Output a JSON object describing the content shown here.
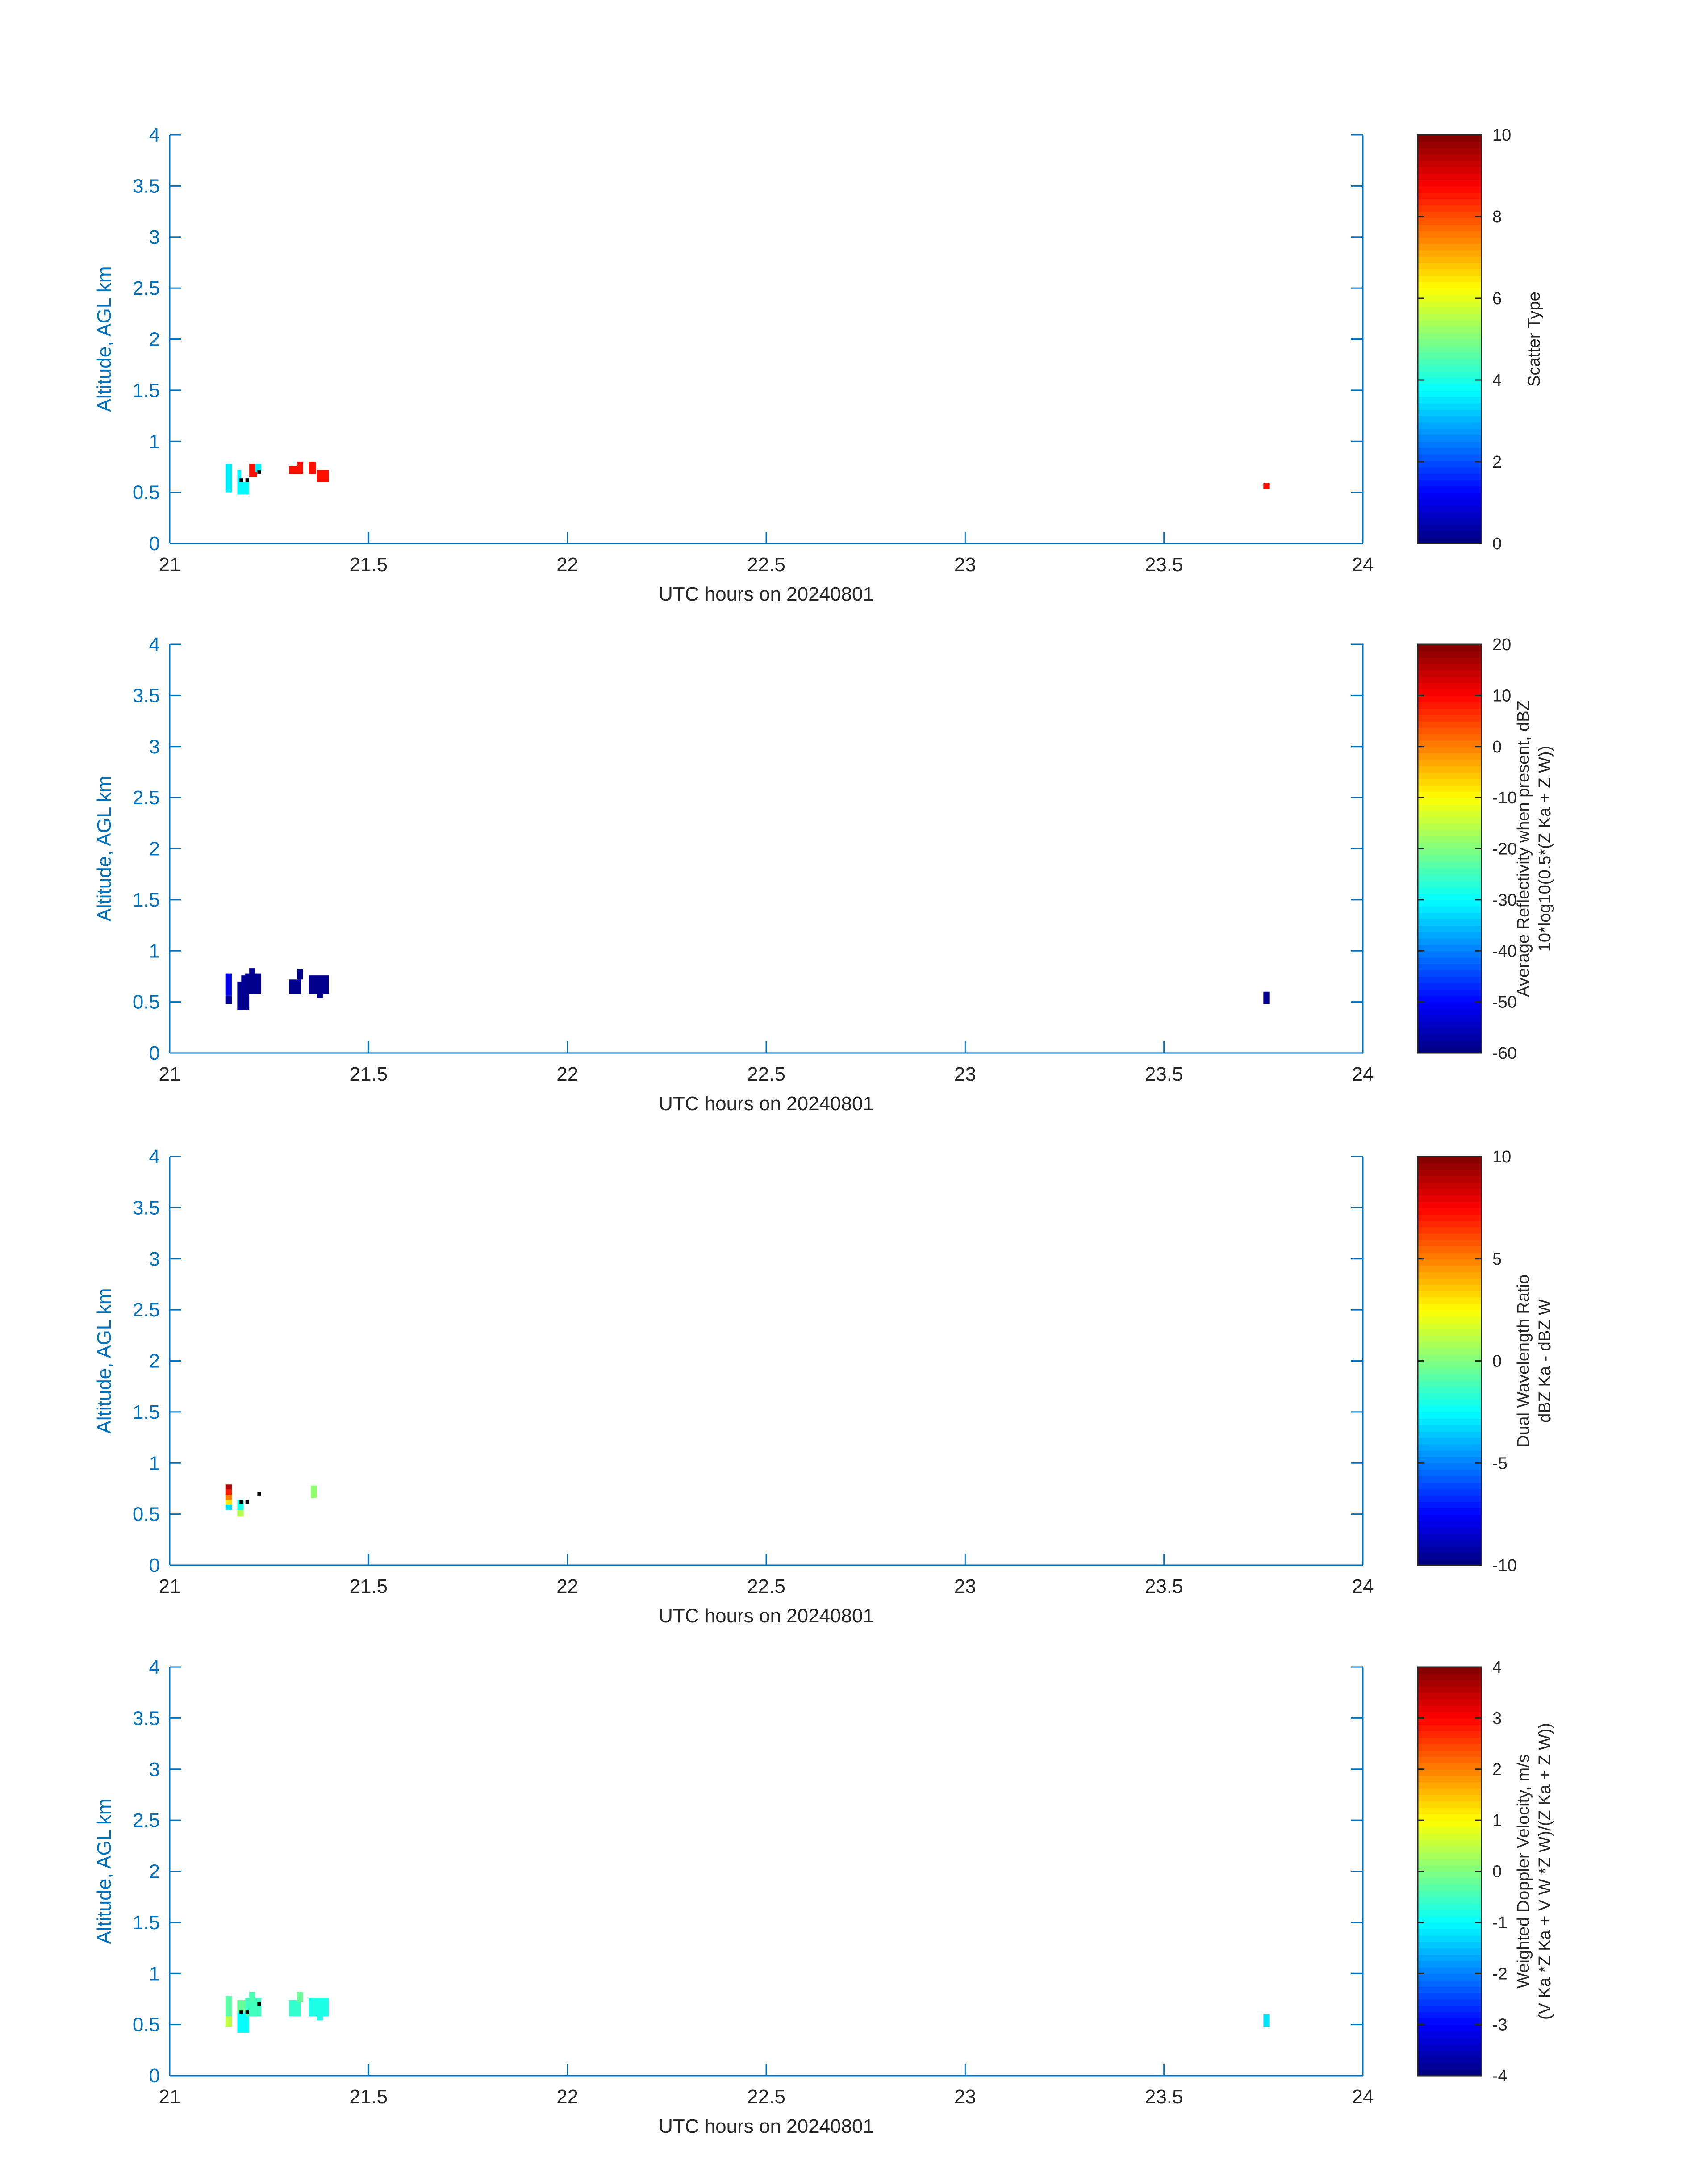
{
  "figure": {
    "background": "#ffffff",
    "axis_color": "#0072BD",
    "text_color": "#262626"
  },
  "colormap": "jet",
  "chart_data": [
    {
      "type": "heatmap",
      "name": "scatter-type",
      "xlabel": "UTC hours on 20240801",
      "ylabel": "Altitude, AGL km",
      "xlim": [
        21,
        24
      ],
      "ylim": [
        0,
        4
      ],
      "xticks": [
        "21",
        "21.5",
        "22",
        "22.5",
        "23",
        "23.5",
        "24"
      ],
      "yticks": [
        "0",
        "0.5",
        "1",
        "1.5",
        "2",
        "2.5",
        "3",
        "3.5",
        "4"
      ],
      "colorbar": {
        "label_lines": [
          "Scatter Type"
        ],
        "clim": [
          0,
          10
        ],
        "ticks": [
          "0",
          "2",
          "4",
          "6",
          "8",
          "10"
        ]
      },
      "cells": [
        {
          "x": 21.14,
          "y": 0.5,
          "w": 0.016,
          "h": 0.28,
          "v": 3.6
        },
        {
          "x": 21.17,
          "y": 0.48,
          "w": 0.03,
          "h": 0.12,
          "v": 3.7
        },
        {
          "x": 21.17,
          "y": 0.6,
          "w": 0.01,
          "h": 0.12,
          "v": 3.7
        },
        {
          "x": 21.2,
          "y": 0.65,
          "w": 0.02,
          "h": 0.13,
          "v": 8.6
        },
        {
          "x": 21.215,
          "y": 0.7,
          "w": 0.015,
          "h": 0.08,
          "v": 3.6
        },
        {
          "x": 21.3,
          "y": 0.68,
          "w": 0.02,
          "h": 0.08,
          "v": 8.6
        },
        {
          "x": 21.32,
          "y": 0.68,
          "w": 0.015,
          "h": 0.12,
          "v": 8.6
        },
        {
          "x": 21.35,
          "y": 0.68,
          "w": 0.018,
          "h": 0.12,
          "v": 8.6
        },
        {
          "x": 21.37,
          "y": 0.6,
          "w": 0.03,
          "h": 0.12,
          "v": 8.6
        },
        {
          "x": 23.75,
          "y": 0.53,
          "w": 0.015,
          "h": 0.06,
          "v": 8.6
        }
      ],
      "markers": [
        {
          "x": 21.18,
          "y": 0.62
        },
        {
          "x": 21.195,
          "y": 0.62
        },
        {
          "x": 21.225,
          "y": 0.7
        }
      ]
    },
    {
      "type": "heatmap",
      "name": "average-reflectivity",
      "xlabel": "UTC hours on 20240801",
      "ylabel": "Altitude, AGL km",
      "xlim": [
        21,
        24
      ],
      "ylim": [
        0,
        4
      ],
      "xticks": [
        "21",
        "21.5",
        "22",
        "22.5",
        "23",
        "23.5",
        "24"
      ],
      "yticks": [
        "0",
        "0.5",
        "1",
        "1.5",
        "2",
        "2.5",
        "3",
        "3.5",
        "4"
      ],
      "colorbar": {
        "label_lines": [
          "Average Reflectivity when present, dBZ",
          "10*log10(0.5*(Z Ka + Z W))"
        ],
        "clim": [
          -60,
          20
        ],
        "ticks": [
          "-60",
          "-50",
          "-40",
          "-30",
          "-20",
          "-10",
          "0",
          "10",
          "20"
        ]
      },
      "cells": [
        {
          "x": 21.14,
          "y": 0.48,
          "w": 0.016,
          "h": 0.08,
          "v": -58
        },
        {
          "x": 21.14,
          "y": 0.56,
          "w": 0.016,
          "h": 0.22,
          "v": -52
        },
        {
          "x": 21.17,
          "y": 0.42,
          "w": 0.03,
          "h": 0.28,
          "v": -59
        },
        {
          "x": 21.18,
          "y": 0.58,
          "w": 0.03,
          "h": 0.18,
          "v": -58
        },
        {
          "x": 21.19,
          "y": 0.58,
          "w": 0.04,
          "h": 0.2,
          "v": -59
        },
        {
          "x": 21.2,
          "y": 0.75,
          "w": 0.015,
          "h": 0.08,
          "v": -59
        },
        {
          "x": 21.3,
          "y": 0.58,
          "w": 0.03,
          "h": 0.14,
          "v": -59
        },
        {
          "x": 21.32,
          "y": 0.72,
          "w": 0.015,
          "h": 0.1,
          "v": -59
        },
        {
          "x": 21.35,
          "y": 0.58,
          "w": 0.05,
          "h": 0.18,
          "v": -59
        },
        {
          "x": 21.37,
          "y": 0.54,
          "w": 0.015,
          "h": 0.05,
          "v": -59
        },
        {
          "x": 23.75,
          "y": 0.48,
          "w": 0.015,
          "h": 0.12,
          "v": -59
        }
      ],
      "markers": []
    },
    {
      "type": "heatmap",
      "name": "dual-wavelength-ratio",
      "xlabel": "UTC hours on 20240801",
      "ylabel": "Altitude, AGL km",
      "xlim": [
        21,
        24
      ],
      "ylim": [
        0,
        4
      ],
      "xticks": [
        "21",
        "21.5",
        "22",
        "22.5",
        "23",
        "23.5",
        "24"
      ],
      "yticks": [
        "0",
        "0.5",
        "1",
        "1.5",
        "2",
        "2.5",
        "3",
        "3.5",
        "4"
      ],
      "colorbar": {
        "label_lines": [
          "Dual Wavelength Ratio",
          "dBZ Ka - dBZ W"
        ],
        "clim": [
          -10,
          10
        ],
        "ticks": [
          "-10",
          "-5",
          "0",
          "5",
          "10"
        ]
      },
      "cells": [
        {
          "x": 21.14,
          "y": 0.54,
          "w": 0.016,
          "h": 0.05,
          "v": -3
        },
        {
          "x": 21.14,
          "y": 0.59,
          "w": 0.016,
          "h": 0.05,
          "v": 3
        },
        {
          "x": 21.14,
          "y": 0.64,
          "w": 0.016,
          "h": 0.05,
          "v": 5
        },
        {
          "x": 21.14,
          "y": 0.69,
          "w": 0.016,
          "h": 0.05,
          "v": 7
        },
        {
          "x": 21.14,
          "y": 0.74,
          "w": 0.016,
          "h": 0.05,
          "v": 9
        },
        {
          "x": 21.17,
          "y": 0.48,
          "w": 0.016,
          "h": 0.06,
          "v": 1
        },
        {
          "x": 21.17,
          "y": 0.54,
          "w": 0.016,
          "h": 0.1,
          "v": -2
        },
        {
          "x": 21.355,
          "y": 0.66,
          "w": 0.015,
          "h": 0.12,
          "v": 0.3
        }
      ],
      "markers": [
        {
          "x": 21.18,
          "y": 0.62
        },
        {
          "x": 21.195,
          "y": 0.62
        },
        {
          "x": 21.225,
          "y": 0.7
        }
      ]
    },
    {
      "type": "heatmap",
      "name": "weighted-doppler-velocity",
      "xlabel": "UTC hours on 20240801",
      "ylabel": "Altitude, AGL km",
      "xlim": [
        21,
        24
      ],
      "ylim": [
        0,
        4
      ],
      "xticks": [
        "21",
        "21.5",
        "22",
        "22.5",
        "23",
        "23.5",
        "24"
      ],
      "yticks": [
        "0",
        "0.5",
        "1",
        "1.5",
        "2",
        "2.5",
        "3",
        "3.5",
        "4"
      ],
      "colorbar": {
        "label_lines": [
          "Weighted Doppler Velocity, m/s",
          "(V Ka *Z Ka + V W *Z W)/(Z Ka + Z W))"
        ],
        "clim": [
          -4,
          4
        ],
        "ticks": [
          "-4",
          "-3",
          "-2",
          "-1",
          "0",
          "1",
          "2",
          "3",
          "4"
        ]
      },
      "cells": [
        {
          "x": 21.14,
          "y": 0.48,
          "w": 0.016,
          "h": 0.1,
          "v": 0.5
        },
        {
          "x": 21.14,
          "y": 0.58,
          "w": 0.016,
          "h": 0.2,
          "v": -0.3
        },
        {
          "x": 21.17,
          "y": 0.42,
          "w": 0.03,
          "h": 0.2,
          "v": -1.0
        },
        {
          "x": 21.17,
          "y": 0.62,
          "w": 0.02,
          "h": 0.12,
          "v": -0.2
        },
        {
          "x": 21.19,
          "y": 0.58,
          "w": 0.04,
          "h": 0.18,
          "v": -0.5
        },
        {
          "x": 21.2,
          "y": 0.72,
          "w": 0.015,
          "h": 0.1,
          "v": -0.4
        },
        {
          "x": 21.3,
          "y": 0.58,
          "w": 0.03,
          "h": 0.16,
          "v": -0.6
        },
        {
          "x": 21.32,
          "y": 0.72,
          "w": 0.015,
          "h": 0.1,
          "v": -0.2
        },
        {
          "x": 21.35,
          "y": 0.58,
          "w": 0.05,
          "h": 0.18,
          "v": -0.8
        },
        {
          "x": 21.37,
          "y": 0.54,
          "w": 0.015,
          "h": 0.05,
          "v": -0.8
        },
        {
          "x": 23.75,
          "y": 0.48,
          "w": 0.015,
          "h": 0.12,
          "v": -1.2
        }
      ],
      "markers": [
        {
          "x": 21.18,
          "y": 0.62
        },
        {
          "x": 21.195,
          "y": 0.62
        },
        {
          "x": 21.225,
          "y": 0.7
        }
      ]
    }
  ]
}
